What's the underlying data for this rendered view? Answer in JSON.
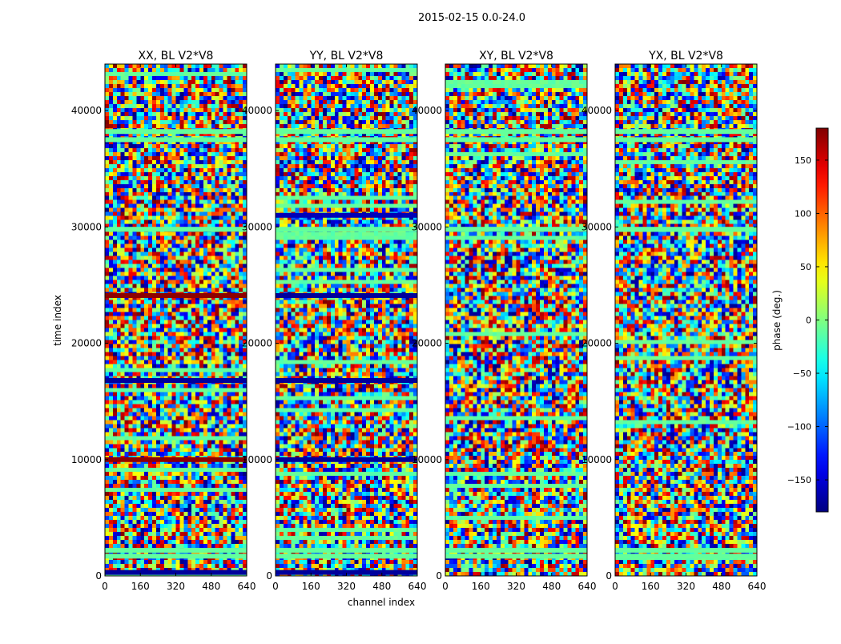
{
  "figure": {
    "suptitle": "2015-02-15 0.0-24.0"
  },
  "chart_data": {
    "type": "heatmap",
    "panels": [
      {
        "title": "XX, BL V2*V8",
        "product": "XX"
      },
      {
        "title": "YY, BL V2*V8",
        "product": "YY"
      },
      {
        "title": "XY, BL V2*V8",
        "product": "XY"
      },
      {
        "title": "YX, BL V2*V8",
        "product": "YX"
      }
    ],
    "xlabel": "channel index",
    "ylabel": "time index",
    "xlim": [
      0,
      640
    ],
    "ylim": [
      0,
      44000
    ],
    "xticks": [
      0,
      160,
      320,
      480,
      640
    ],
    "xtick_labels": [
      "0",
      "160",
      "320",
      "480",
      "640"
    ],
    "yticks": [
      0,
      10000,
      20000,
      30000,
      40000
    ],
    "ytick_labels": [
      "0",
      "10000",
      "20000",
      "30000",
      "40000"
    ],
    "colorbar": {
      "label": "phase (deg.)",
      "range": [
        -180,
        180
      ],
      "ticks": [
        -150,
        -100,
        -50,
        0,
        50,
        100,
        150
      ],
      "tick_labels": [
        "−150",
        "−100",
        "−50",
        "0",
        "50",
        "100",
        "150"
      ],
      "colormap": "jet"
    },
    "flagged_rows": [
      {
        "t": 300,
        "phase": -170,
        "panels": [
          "XX",
          "YY"
        ]
      },
      {
        "t": 1700,
        "phase": -10,
        "panels": [
          "XX",
          "YY",
          "XY",
          "YX"
        ]
      },
      {
        "t": 2200,
        "phase": -10,
        "panels": [
          "XX",
          "YY",
          "XY",
          "YX"
        ]
      },
      {
        "t": 10000,
        "phase": 175,
        "panels": [
          "XX"
        ]
      },
      {
        "t": 10000,
        "phase": -170,
        "panels": [
          "YY"
        ]
      },
      {
        "t": 16800,
        "phase": -170,
        "panels": [
          "XX",
          "YY"
        ]
      },
      {
        "t": 24100,
        "phase": 175,
        "panels": [
          "XX"
        ]
      },
      {
        "t": 24100,
        "phase": -170,
        "panels": [
          "YY"
        ]
      },
      {
        "t": 29800,
        "phase": -10,
        "panels": [
          "XX",
          "YY",
          "XY",
          "YX"
        ]
      },
      {
        "t": 31000,
        "phase": -160,
        "panels": [
          "YY"
        ]
      },
      {
        "t": 37500,
        "phase": -10,
        "panels": [
          "XX",
          "YY",
          "XY",
          "YX"
        ]
      },
      {
        "t": 38200,
        "phase": -10,
        "panels": [
          "XX",
          "YY",
          "XY",
          "YX"
        ]
      }
    ]
  }
}
